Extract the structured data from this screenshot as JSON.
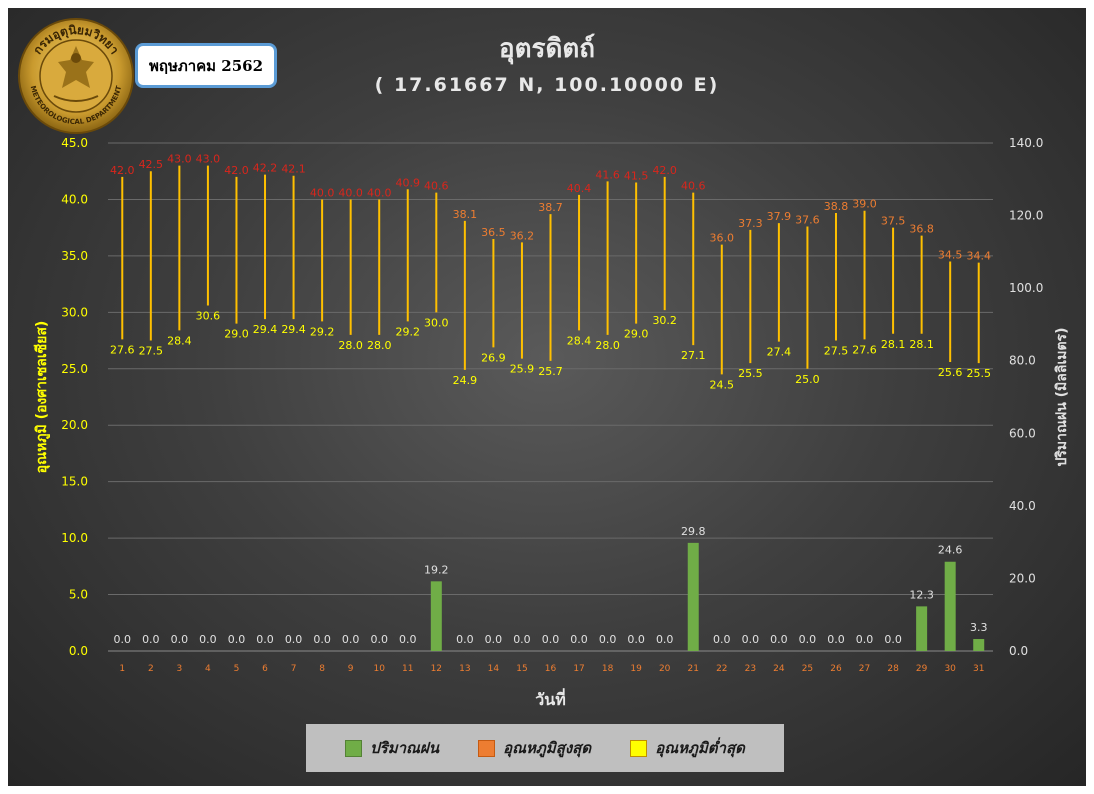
{
  "header": {
    "month_label": "พฤษภาคม 2562",
    "title": "อุตรดิตถ์",
    "subtitle": "( 17.61667 N, 100.10000 E)",
    "logo_text_top": "กรมอุตุนิยมวิทยา",
    "logo_text_bottom": "METEOROLOGICAL DEPARTMENT"
  },
  "legend": {
    "items": [
      {
        "label": "ปริมาณฝน",
        "color": "#70ad47"
      },
      {
        "label": "อุณหภูมิสูงสุด",
        "color": "#ed7d31"
      },
      {
        "label": "อุณหภูมิต่ำสุด",
        "color": "#ffff00"
      }
    ]
  },
  "chart_data": {
    "type": "bar",
    "xlabel": "วันที่",
    "ylabel_left": "อุณหภูมิ (องศาเซลเซียส)",
    "ylabel_right": "ปริมาณฝน (มิลลิเมตร)",
    "ylim_left": [
      0,
      45
    ],
    "ylim_right": [
      0,
      140
    ],
    "yticks_left": [
      "0.0",
      "5.0",
      "10.0",
      "15.0",
      "20.0",
      "25.0",
      "30.0",
      "35.0",
      "40.0",
      "45.0"
    ],
    "yticks_right": [
      "0.0",
      "20.0",
      "40.0",
      "60.0",
      "80.0",
      "100.0",
      "120.0",
      "140.0"
    ],
    "categories": [
      "1",
      "2",
      "3",
      "4",
      "5",
      "6",
      "7",
      "8",
      "9",
      "10",
      "11",
      "12",
      "13",
      "14",
      "15",
      "16",
      "17",
      "18",
      "19",
      "20",
      "21",
      "22",
      "23",
      "24",
      "25",
      "26",
      "27",
      "28",
      "29",
      "30",
      "31"
    ],
    "series": [
      {
        "name": "อุณหภูมิสูงสุด",
        "axis": "left",
        "color": "#ed7d31",
        "values": [
          42.0,
          42.5,
          43.0,
          43.0,
          42.0,
          42.2,
          42.1,
          40.0,
          40.0,
          40.0,
          40.9,
          40.6,
          38.1,
          36.5,
          36.2,
          38.7,
          40.4,
          41.6,
          41.5,
          42.0,
          40.6,
          36.0,
          37.3,
          37.9,
          37.6,
          38.8,
          39.0,
          37.5,
          36.8,
          34.5,
          34.4
        ]
      },
      {
        "name": "อุณหภูมิต่ำสุด",
        "axis": "left",
        "color": "#ffff00",
        "values": [
          27.6,
          27.5,
          28.4,
          30.6,
          29.0,
          29.4,
          29.4,
          29.2,
          28.0,
          28.0,
          29.2,
          30.0,
          24.9,
          26.9,
          25.9,
          25.7,
          28.4,
          28.0,
          29.0,
          30.2,
          27.1,
          24.5,
          25.5,
          27.4,
          25.0,
          27.5,
          27.6,
          28.1,
          28.1,
          25.6,
          25.5
        ]
      },
      {
        "name": "ปริมาณฝน",
        "axis": "right",
        "color": "#70ad47",
        "values": [
          0.0,
          0.0,
          0.0,
          0.0,
          0.0,
          0.0,
          0.0,
          0.0,
          0.0,
          0.0,
          0.0,
          19.2,
          0.0,
          0.0,
          0.0,
          0.0,
          0.0,
          0.0,
          0.0,
          0.0,
          29.8,
          0.0,
          0.0,
          0.0,
          0.0,
          0.0,
          0.0,
          0.0,
          12.3,
          24.6,
          3.3
        ]
      }
    ]
  }
}
